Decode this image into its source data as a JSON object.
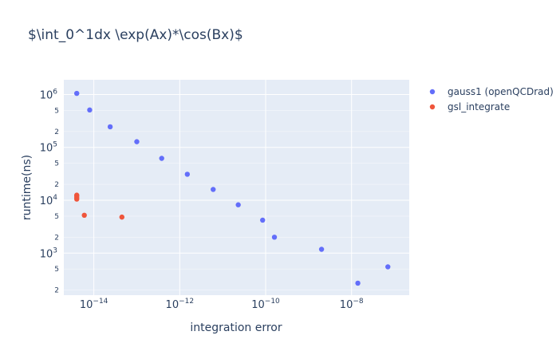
{
  "chart_data": {
    "type": "scatter",
    "title": "$\\int_0^1dx \\exp(Ax)*\\cos(Bx)$",
    "xlabel": "integration error",
    "ylabel": "runtime(ns)",
    "x_scale": "log",
    "y_scale": "log",
    "xlim": [
      2e-15,
      2.2e-07
    ],
    "ylim": [
      160,
      1900000
    ],
    "grid": true,
    "legend_position": "top-right",
    "x_ticks": [
      {
        "value": 1e-14,
        "base": "10",
        "exp": "−14"
      },
      {
        "value": 1e-12,
        "base": "10",
        "exp": "−12"
      },
      {
        "value": 1e-10,
        "base": "10",
        "exp": "−10"
      },
      {
        "value": 1e-08,
        "base": "10",
        "exp": "−8"
      }
    ],
    "y_major_ticks": [
      {
        "value": 1000,
        "base": "10",
        "exp": "3"
      },
      {
        "value": 10000,
        "base": "10",
        "exp": "4"
      },
      {
        "value": 100000,
        "base": "10",
        "exp": "5"
      },
      {
        "value": 1000000,
        "base": "10",
        "exp": "6"
      }
    ],
    "y_minor_ticks": [
      {
        "value": 200,
        "label": "2"
      },
      {
        "value": 500,
        "label": "5"
      },
      {
        "value": 2000,
        "label": "2"
      },
      {
        "value": 5000,
        "label": "5"
      },
      {
        "value": 20000,
        "label": "2"
      },
      {
        "value": 50000,
        "label": "5"
      },
      {
        "value": 200000,
        "label": "2"
      },
      {
        "value": 500000,
        "label": "5"
      }
    ],
    "series": [
      {
        "name": "gauss1 (openQCDrad)",
        "color": "#636efa",
        "points": [
          {
            "x": 4e-15,
            "y": 1050000
          },
          {
            "x": 8e-15,
            "y": 510000
          },
          {
            "x": 2.4e-14,
            "y": 245000
          },
          {
            "x": 1e-13,
            "y": 128000
          },
          {
            "x": 3.8e-13,
            "y": 62000
          },
          {
            "x": 1.5e-12,
            "y": 31000
          },
          {
            "x": 6e-12,
            "y": 16000
          },
          {
            "x": 2.3e-11,
            "y": 8200
          },
          {
            "x": 8.5e-11,
            "y": 4200
          },
          {
            "x": 1.6e-10,
            "y": 2000
          },
          {
            "x": 2e-09,
            "y": 1180
          },
          {
            "x": 1.4e-08,
            "y": 270
          },
          {
            "x": 7e-08,
            "y": 550
          }
        ]
      },
      {
        "name": "gsl_integrate",
        "color": "#ef553b",
        "points": [
          {
            "x": 4e-15,
            "y": 12500
          },
          {
            "x": 4e-15,
            "y": 12000
          },
          {
            "x": 4e-15,
            "y": 11200
          },
          {
            "x": 4e-15,
            "y": 10500
          },
          {
            "x": 6e-15,
            "y": 5200
          },
          {
            "x": 4.5e-14,
            "y": 4800
          }
        ]
      }
    ]
  }
}
